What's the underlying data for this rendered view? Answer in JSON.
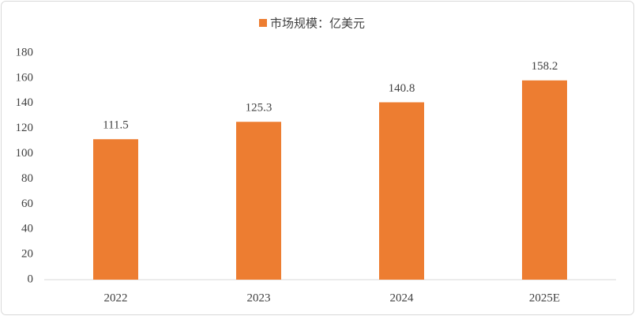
{
  "chart_data": {
    "type": "bar",
    "categories": [
      "2022",
      "2023",
      "2024",
      "2025E"
    ],
    "series": [
      {
        "name": "市场规模：亿美元",
        "color": "#ed7d31",
        "values": [
          111.5,
          125.3,
          140.8,
          158.2
        ]
      }
    ],
    "ylim": [
      0,
      180
    ],
    "yticks": [
      0,
      20,
      40,
      60,
      80,
      100,
      120,
      140,
      160,
      180
    ],
    "legend": "top",
    "data_labels": true
  }
}
